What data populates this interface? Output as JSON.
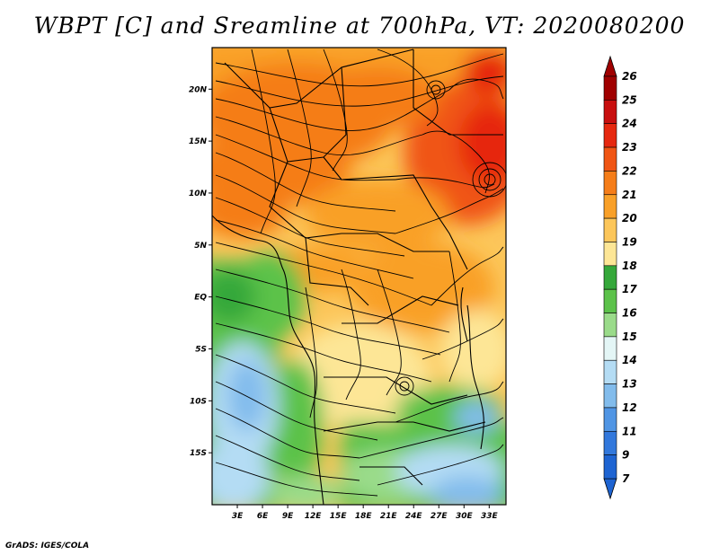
{
  "title": "WBPT [C] and Sreamline at 700hPa, VT: 2020080200",
  "credit": "GrADS: IGES/COLA",
  "map": {
    "lat_range": [
      -20,
      24
    ],
    "lon_range": [
      0,
      35
    ],
    "lat_ticks": [
      {
        "value": 20,
        "label": "20N"
      },
      {
        "value": 15,
        "label": "15N"
      },
      {
        "value": 10,
        "label": "10N"
      },
      {
        "value": 5,
        "label": "5N"
      },
      {
        "value": 0,
        "label": "EQ"
      },
      {
        "value": -5,
        "label": "5S"
      },
      {
        "value": -10,
        "label": "10S"
      },
      {
        "value": -15,
        "label": "15S"
      }
    ],
    "lon_ticks": [
      {
        "value": 3,
        "label": "3E"
      },
      {
        "value": 6,
        "label": "6E"
      },
      {
        "value": 9,
        "label": "9E"
      },
      {
        "value": 12,
        "label": "12E"
      },
      {
        "value": 15,
        "label": "15E"
      },
      {
        "value": 18,
        "label": "18E"
      },
      {
        "value": 21,
        "label": "21E"
      },
      {
        "value": 24,
        "label": "24E"
      },
      {
        "value": 27,
        "label": "27E"
      },
      {
        "value": 30,
        "label": "30E"
      },
      {
        "value": 33,
        "label": "33E"
      }
    ]
  },
  "colorbar": {
    "labels": [
      "26",
      "25",
      "24",
      "23",
      "22",
      "21",
      "20",
      "19",
      "18",
      "17",
      "16",
      "15",
      "14",
      "13",
      "12",
      "11",
      "9",
      "7"
    ],
    "colors": [
      "#a00000",
      "#c80f0f",
      "#e6280f",
      "#f05514",
      "#f57d19",
      "#f9a028",
      "#fcc65a",
      "#fde696",
      "#35a83a",
      "#5cc24a",
      "#9adb8a",
      "#e4f6f6",
      "#b4dcf4",
      "#82bcec",
      "#5095e4",
      "#3278dc",
      "#1e64d2"
    ],
    "top_arrow_color": "#a00000",
    "bottom_arrow_color": "#1e64d2"
  }
}
